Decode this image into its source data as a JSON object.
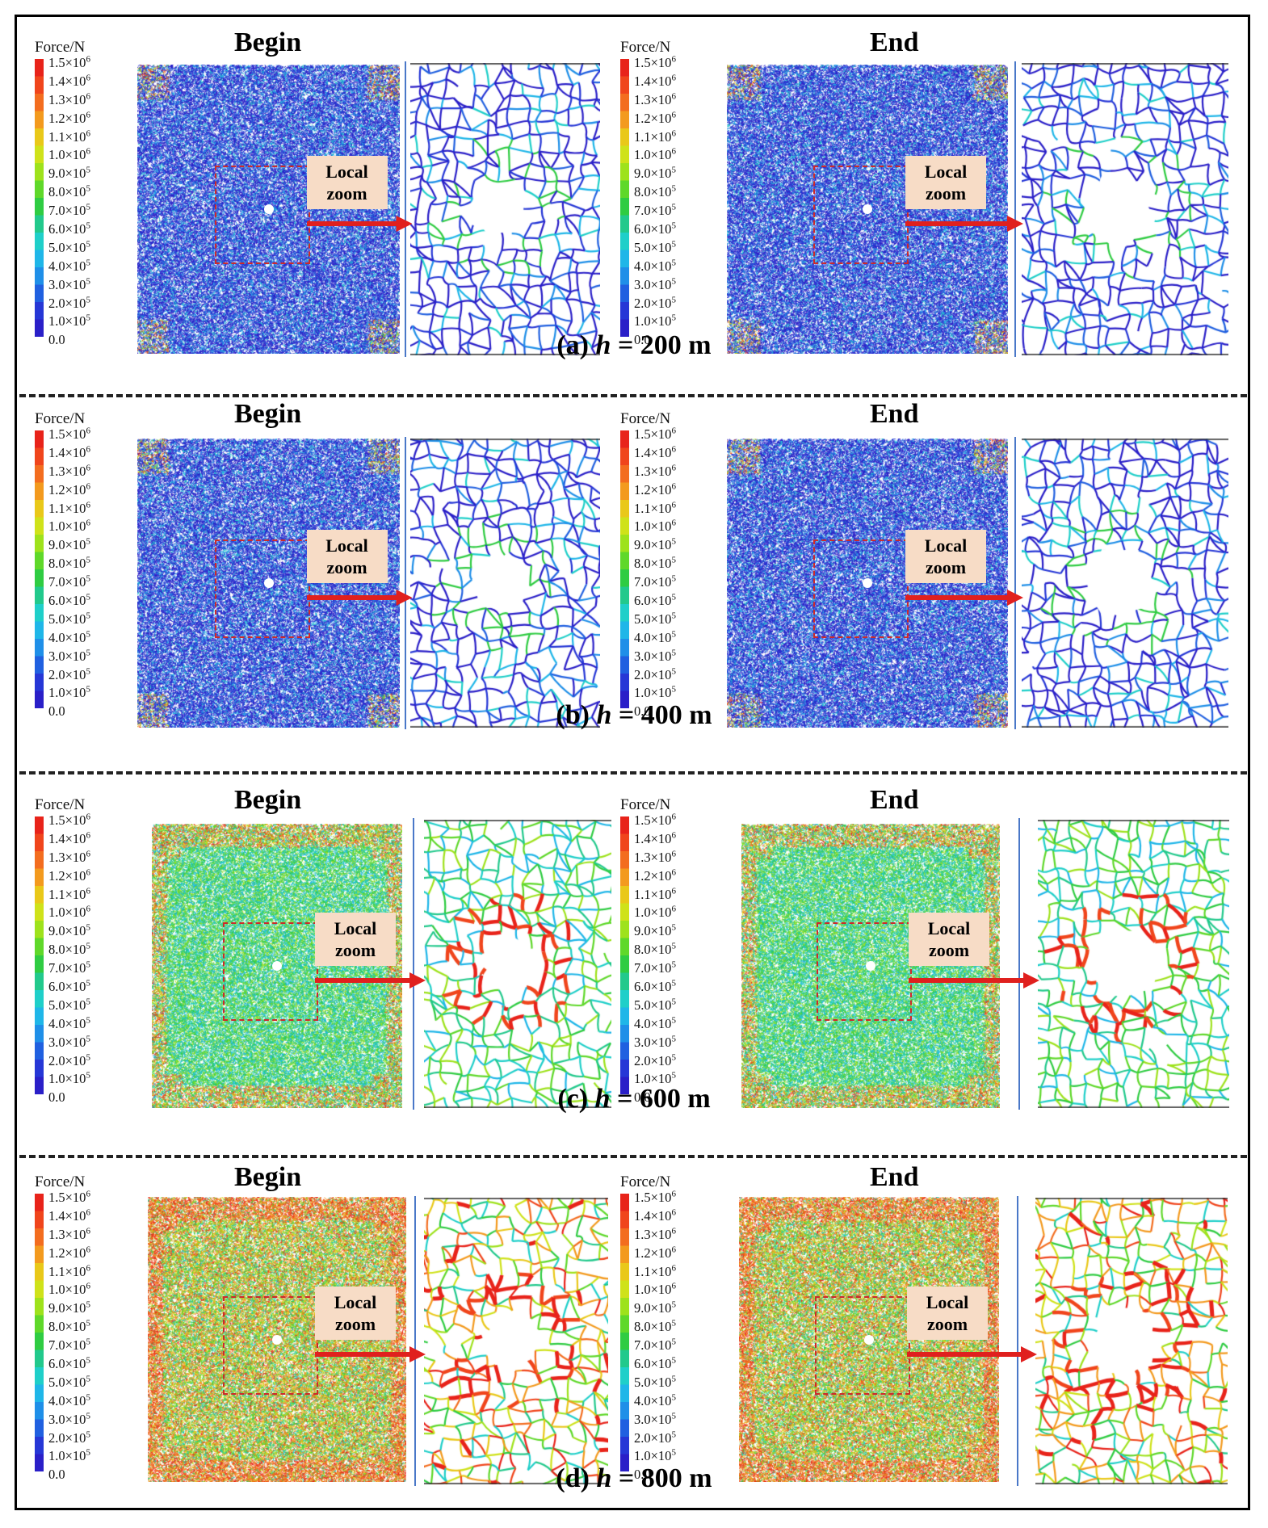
{
  "labels": {
    "begin": "Begin",
    "end": "End",
    "force_unit": "Force/N",
    "local": "Local",
    "zoom": "zoom"
  },
  "legend": {
    "ticks": [
      {
        "m": "1.5",
        "e": "6"
      },
      {
        "m": "1.4",
        "e": "6"
      },
      {
        "m": "1.3",
        "e": "6"
      },
      {
        "m": "1.2",
        "e": "6"
      },
      {
        "m": "1.1",
        "e": "6"
      },
      {
        "m": "1.0",
        "e": "6"
      },
      {
        "m": "9.0",
        "e": "5"
      },
      {
        "m": "8.0",
        "e": "5"
      },
      {
        "m": "7.0",
        "e": "5"
      },
      {
        "m": "6.0",
        "e": "5"
      },
      {
        "m": "5.0",
        "e": "5"
      },
      {
        "m": "4.0",
        "e": "5"
      },
      {
        "m": "3.0",
        "e": "5"
      },
      {
        "m": "2.0",
        "e": "5"
      },
      {
        "m": "1.0",
        "e": "5"
      },
      {
        "m": "0.0",
        "e": ""
      }
    ],
    "colors": [
      "#e8231a",
      "#f0451c",
      "#f36d1f",
      "#f39a1e",
      "#e9c819",
      "#cfe21a",
      "#9ee21c",
      "#5fd82a",
      "#2fcc42",
      "#22c98c",
      "#1fcfc9",
      "#1fb6e8",
      "#1f8fe8",
      "#2060e0",
      "#2637d6",
      "#2a1fc8"
    ]
  },
  "panels": [
    {
      "id": "a",
      "prefix": "(a) ",
      "var": "h",
      "suffix": " = 200 m",
      "depth_m": 200,
      "palette": "blue",
      "intensity": 0.15
    },
    {
      "id": "b",
      "prefix": "(b) ",
      "var": "h",
      "suffix": " = 400 m",
      "depth_m": 400,
      "palette": "blue",
      "intensity": 0.25
    },
    {
      "id": "c",
      "prefix": "(c) ",
      "var": "h",
      "suffix": " = 600 m",
      "depth_m": 600,
      "palette": "green",
      "intensity": 0.55
    },
    {
      "id": "d",
      "prefix": "(d) ",
      "var": "h",
      "suffix": " = 800 m",
      "depth_m": 800,
      "palette": "hot",
      "intensity": 0.8
    }
  ]
}
